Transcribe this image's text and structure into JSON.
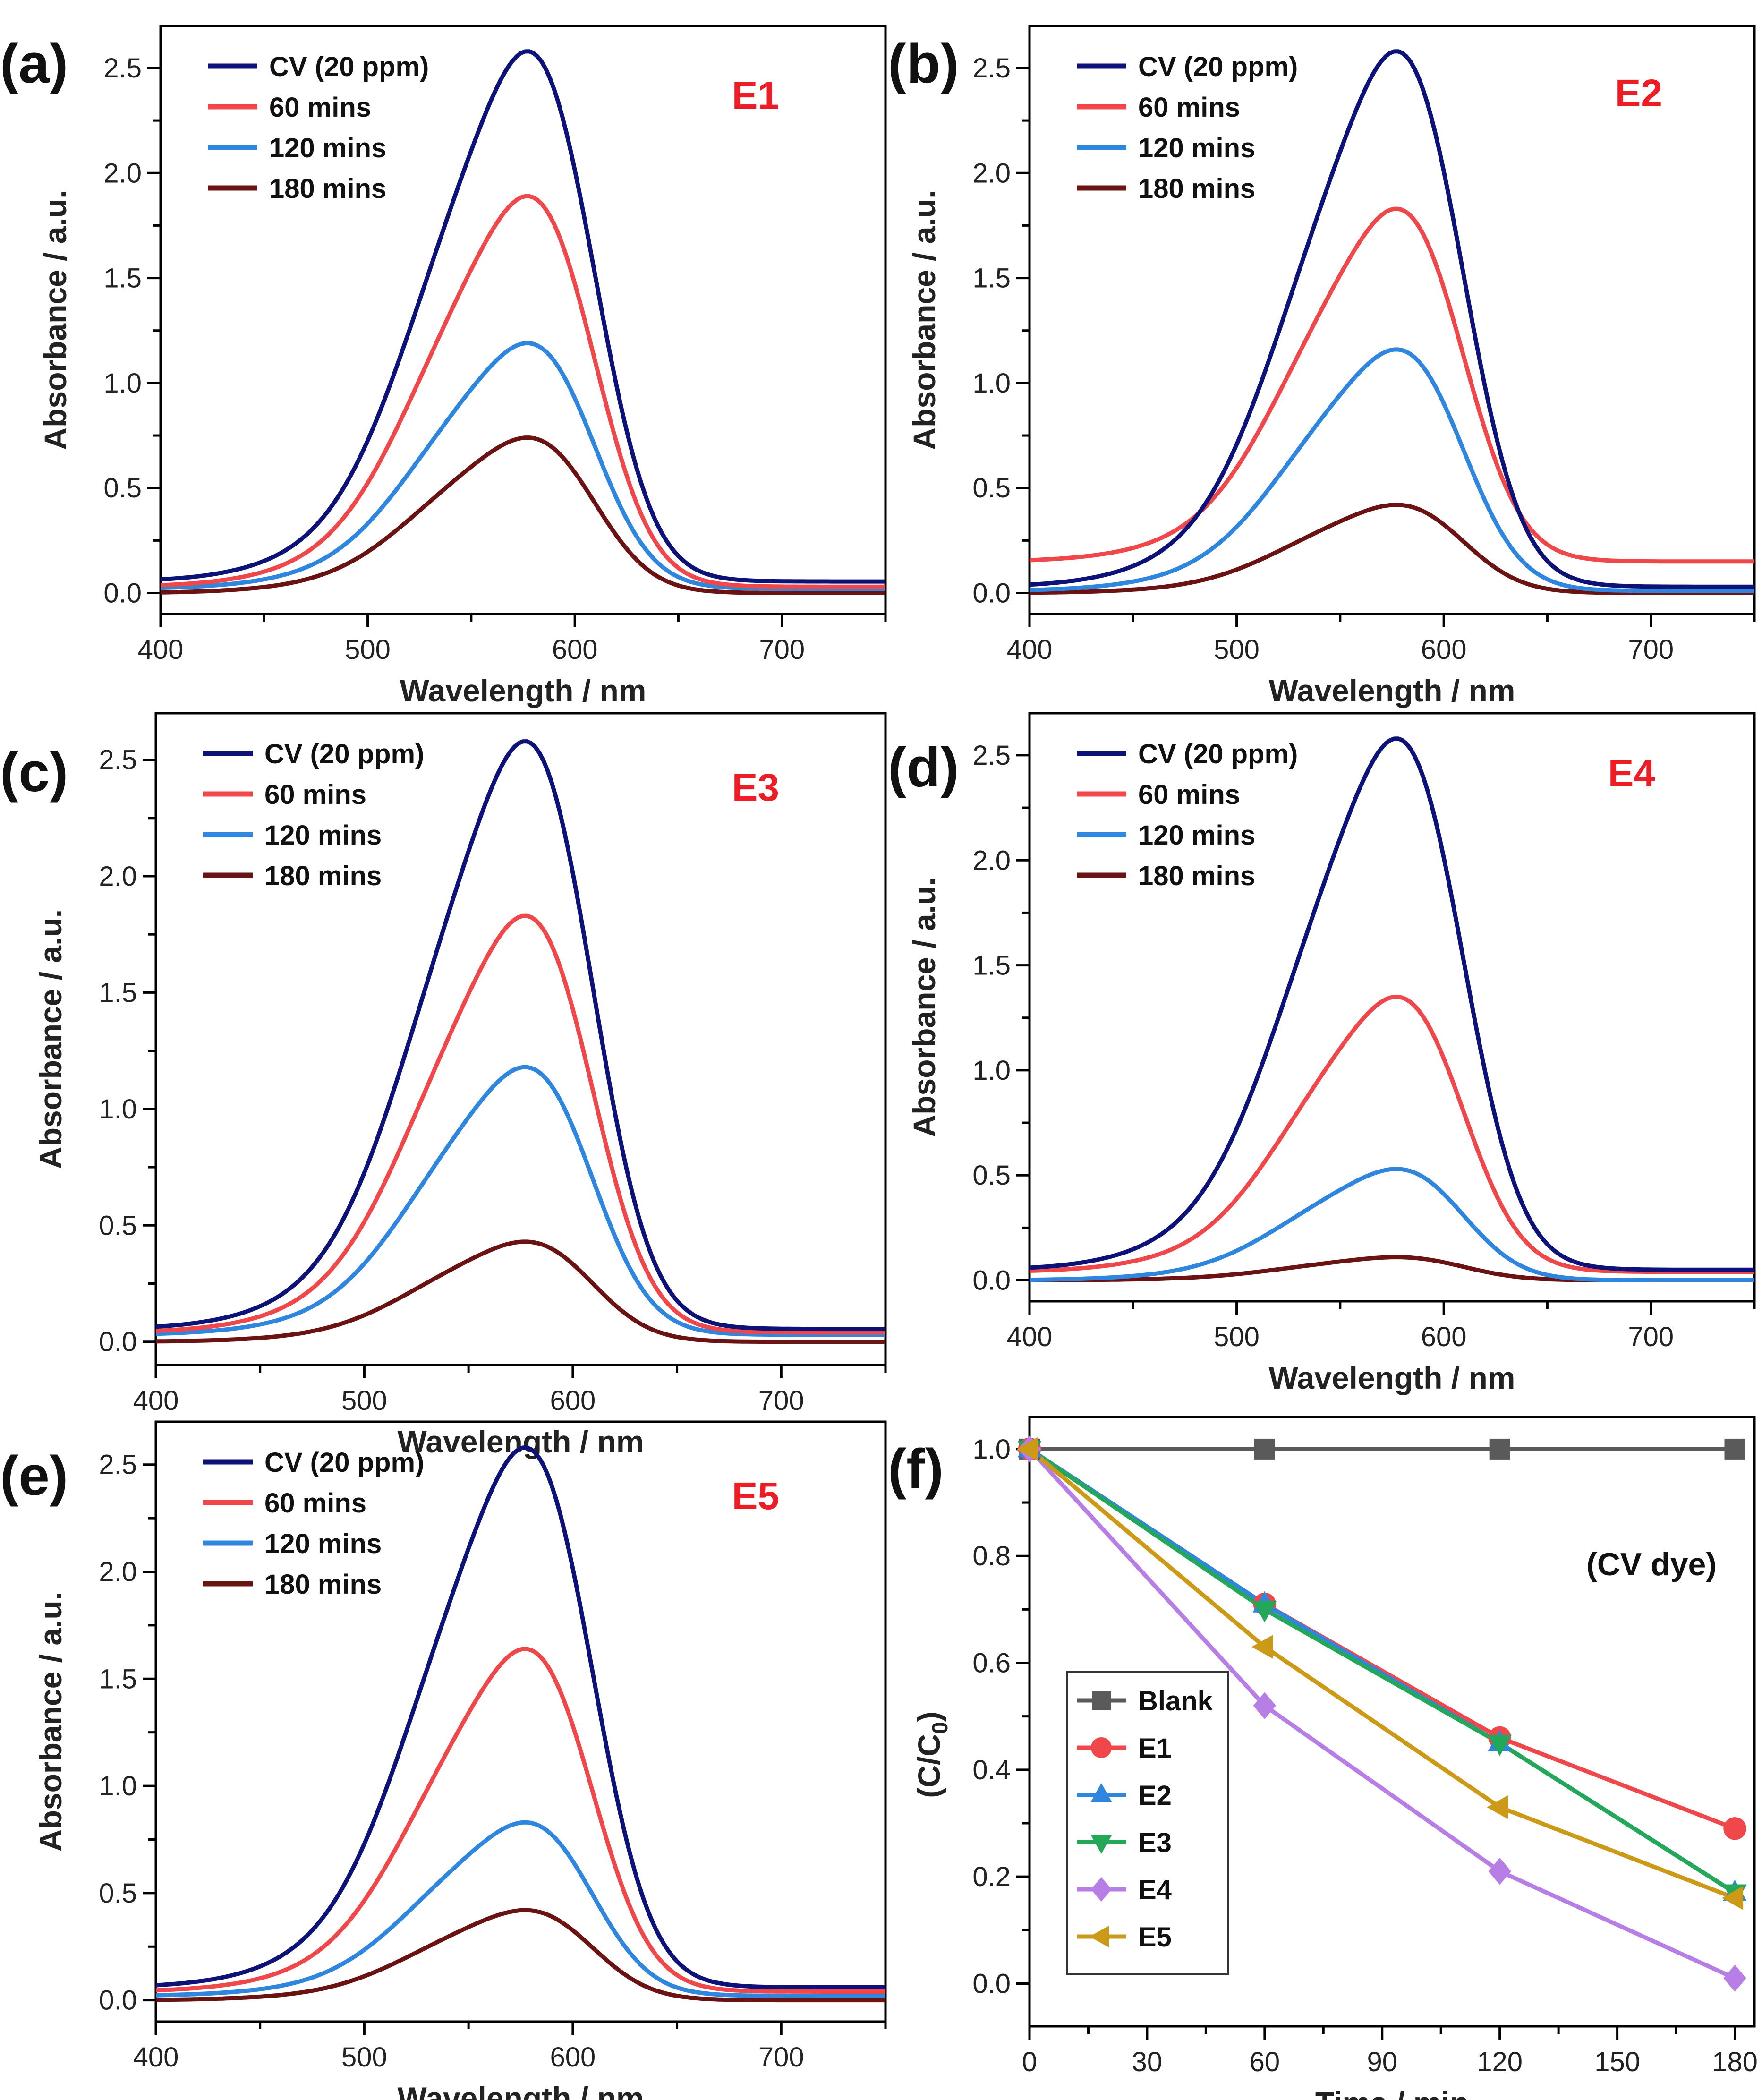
{
  "figure": {
    "panel_count": 6
  },
  "chart_data": [
    {
      "panel": "(a)",
      "tag": "E1",
      "type": "line",
      "xlabel": "Wavelength / nm",
      "ylabel": "Absorbance / a.u.",
      "xlim": [
        400,
        750
      ],
      "ylim": [
        -0.1,
        2.7
      ],
      "xticks": [
        "400",
        "500",
        "600",
        "700"
      ],
      "yticks": [
        "0.0",
        "0.5",
        "1.0",
        "1.5",
        "2.0",
        "2.5"
      ],
      "legend_position": "top-left",
      "series": [
        {
          "name": "CV (20 ppm)",
          "color": "#0d1278",
          "peak": 2.58,
          "baseline": 0.055
        },
        {
          "name": "60 mins",
          "color": "#f0484a",
          "peak": 1.89,
          "baseline": 0.03
        },
        {
          "name": "120 mins",
          "color": "#2e86de",
          "peak": 1.19,
          "baseline": 0.02
        },
        {
          "name": "180 mins",
          "color": "#6b1212",
          "peak": 0.74,
          "baseline": 0.0
        }
      ]
    },
    {
      "panel": "(b)",
      "tag": "E2",
      "type": "line",
      "xlabel": "Wavelength / nm",
      "ylabel": "Absorbance / a.u.",
      "xlim": [
        400,
        750
      ],
      "ylim": [
        -0.1,
        2.7
      ],
      "xticks": [
        "400",
        "500",
        "600",
        "700"
      ],
      "yticks": [
        "0.0",
        "0.5",
        "1.0",
        "1.5",
        "2.0",
        "2.5"
      ],
      "legend_position": "top-left",
      "series": [
        {
          "name": "CV (20 ppm)",
          "color": "#0d1278",
          "peak": 2.58,
          "baseline": 0.03
        },
        {
          "name": "60 mins",
          "color": "#f0484a",
          "peak": 1.83,
          "baseline": 0.15
        },
        {
          "name": "120 mins",
          "color": "#2e86de",
          "peak": 1.16,
          "baseline": 0.01
        },
        {
          "name": "180 mins",
          "color": "#6b1212",
          "peak": 0.42,
          "baseline": 0.0
        }
      ]
    },
    {
      "panel": "(c)",
      "tag": "E3",
      "type": "line",
      "xlabel": "Wavelength / nm",
      "ylabel": "Absorbance / a.u.",
      "xlim": [
        400,
        750
      ],
      "ylim": [
        -0.1,
        2.7
      ],
      "xticks": [
        "400",
        "500",
        "600",
        "700"
      ],
      "yticks": [
        "0.0",
        "0.5",
        "1.0",
        "1.5",
        "2.0",
        "2.5"
      ],
      "legend_position": "top-left",
      "series": [
        {
          "name": "CV (20 ppm)",
          "color": "#0d1278",
          "peak": 2.58,
          "baseline": 0.055
        },
        {
          "name": "60 mins",
          "color": "#f0484a",
          "peak": 1.83,
          "baseline": 0.04
        },
        {
          "name": "120 mins",
          "color": "#2e86de",
          "peak": 1.18,
          "baseline": 0.03
        },
        {
          "name": "180 mins",
          "color": "#6b1212",
          "peak": 0.43,
          "baseline": 0.0
        }
      ]
    },
    {
      "panel": "(d)",
      "tag": "E4",
      "type": "line",
      "xlabel": "Wavelength / nm",
      "ylabel": "Absorbance / a.u.",
      "xlim": [
        400,
        750
      ],
      "ylim": [
        -0.1,
        2.7
      ],
      "xticks": [
        "400",
        "500",
        "600",
        "700"
      ],
      "yticks": [
        "0.0",
        "0.5",
        "1.0",
        "1.5",
        "2.0",
        "2.5"
      ],
      "legend_position": "top-left",
      "series": [
        {
          "name": "CV (20 ppm)",
          "color": "#0d1278",
          "peak": 2.58,
          "baseline": 0.05
        },
        {
          "name": "60 mins",
          "color": "#f0484a",
          "peak": 1.35,
          "baseline": 0.04
        },
        {
          "name": "120 mins",
          "color": "#2e86de",
          "peak": 0.53,
          "baseline": 0.0
        },
        {
          "name": "180 mins",
          "color": "#6b1212",
          "peak": 0.11,
          "baseline": 0.0
        }
      ]
    },
    {
      "panel": "(e)",
      "tag": "E5",
      "type": "line",
      "xlabel": "Wavelength / nm",
      "ylabel": "Absorbance / a.u.",
      "xlim": [
        400,
        750
      ],
      "ylim": [
        -0.1,
        2.7
      ],
      "xticks": [
        "400",
        "500",
        "600",
        "700"
      ],
      "yticks": [
        "0.0",
        "0.5",
        "1.0",
        "1.5",
        "2.0",
        "2.5"
      ],
      "legend_position": "top-left",
      "series": [
        {
          "name": "CV (20 ppm)",
          "color": "#0d1278",
          "peak": 2.58,
          "baseline": 0.06
        },
        {
          "name": "60 mins",
          "color": "#f0484a",
          "peak": 1.64,
          "baseline": 0.04
        },
        {
          "name": "120 mins",
          "color": "#2e86de",
          "peak": 0.83,
          "baseline": 0.02
        },
        {
          "name": "180 mins",
          "color": "#6b1212",
          "peak": 0.42,
          "baseline": 0.0
        }
      ]
    },
    {
      "panel": "(f)",
      "tag": "(CV dye)",
      "type": "line",
      "xlabel": "Time / min",
      "ylabel": "(C/C0)",
      "ylabel_parts": {
        "prefix": "(C/C",
        "sub": "0",
        "suffix": ")"
      },
      "xlim": [
        0,
        185
      ],
      "ylim": [
        -0.08,
        1.06
      ],
      "xticks": [
        "0",
        "30",
        "60",
        "90",
        "120",
        "150",
        "180"
      ],
      "yticks": [
        "0.0",
        "0.2",
        "0.4",
        "0.6",
        "0.8",
        "1.0"
      ],
      "legend_position": "bottom-left",
      "x": [
        0,
        60,
        120,
        180
      ],
      "series": [
        {
          "name": "Blank",
          "color": "#5a5a5a",
          "marker": "square",
          "values": [
            1.0,
            1.0,
            1.0,
            1.0
          ]
        },
        {
          "name": "E1",
          "color": "#f0484a",
          "marker": "circle",
          "values": [
            1.0,
            0.71,
            0.46,
            0.29
          ]
        },
        {
          "name": "E2",
          "color": "#2e86de",
          "marker": "triangle-up",
          "values": [
            1.0,
            0.71,
            0.45,
            0.17
          ]
        },
        {
          "name": "E3",
          "color": "#23a85a",
          "marker": "triangle-down",
          "values": [
            1.0,
            0.7,
            0.45,
            0.17
          ]
        },
        {
          "name": "E4",
          "color": "#b77ee6",
          "marker": "diamond",
          "values": [
            1.0,
            0.52,
            0.21,
            0.01
          ]
        },
        {
          "name": "E5",
          "color": "#cc9a16",
          "marker": "triangle-left",
          "values": [
            1.0,
            0.63,
            0.33,
            0.16
          ]
        }
      ]
    }
  ]
}
